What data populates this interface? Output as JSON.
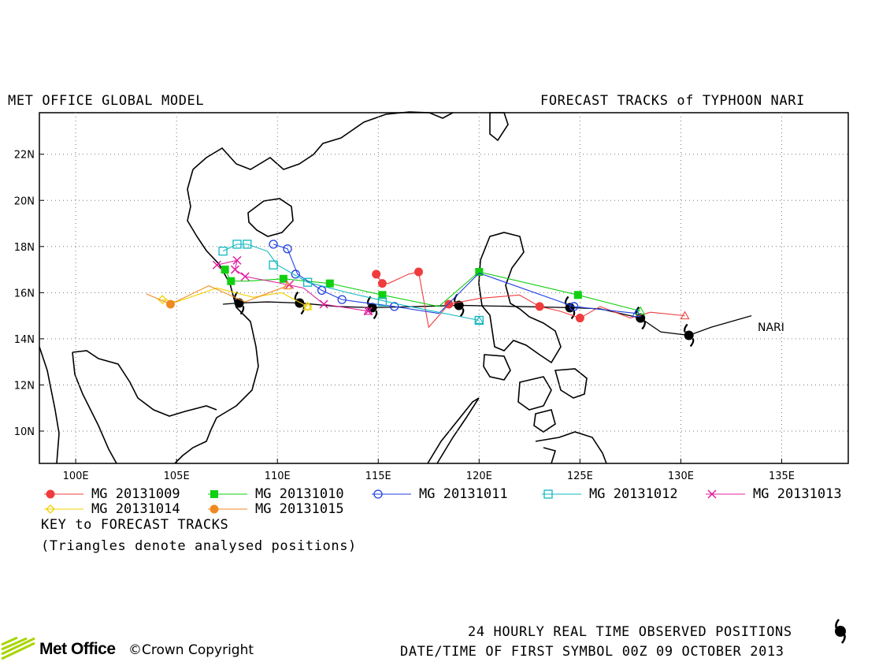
{
  "header": {
    "left_title": "MET OFFICE GLOBAL MODEL",
    "right_title": "FORECAST TRACKS of TYPHOON NARI"
  },
  "map": {
    "lon_ticks": [
      "100E",
      "105E",
      "110E",
      "115E",
      "120E",
      "125E",
      "130E",
      "135E"
    ],
    "lat_ticks": [
      "10N",
      "12N",
      "14N",
      "16N",
      "18N",
      "20N",
      "22N"
    ],
    "storm_label": "NARI",
    "lon_range": [
      98.2,
      138.3
    ],
    "lat_range": [
      8.6,
      23.8
    ]
  },
  "observed_track": [
    [
      133.5,
      15.0
    ],
    [
      131.5,
      14.5
    ],
    [
      130.4,
      14.15
    ],
    [
      129.0,
      14.3
    ],
    [
      128.0,
      14.9
    ],
    [
      126.0,
      15.3
    ],
    [
      124.5,
      15.35
    ],
    [
      122.0,
      15.4
    ],
    [
      119.0,
      15.45
    ],
    [
      117.0,
      15.4
    ],
    [
      114.7,
      15.35
    ],
    [
      113.0,
      15.4
    ],
    [
      111.1,
      15.55
    ],
    [
      109.5,
      15.6
    ],
    [
      108.1,
      15.55
    ],
    [
      107.3,
      15.5
    ]
  ],
  "observed_symbols": [
    [
      130.4,
      14.15
    ],
    [
      128.0,
      14.9
    ],
    [
      124.5,
      15.35
    ],
    [
      119.0,
      15.45
    ],
    [
      114.7,
      15.35
    ],
    [
      111.1,
      15.55
    ],
    [
      108.1,
      15.55
    ]
  ],
  "tracks": [
    {
      "name": "MG 20131009",
      "color": "#f03c3c",
      "marker": "circle-filled",
      "points": [
        [
          130.2,
          15.0
        ],
        [
          128.5,
          15.15
        ],
        [
          127.5,
          14.9
        ],
        [
          126.0,
          15.4
        ],
        [
          125.0,
          14.9
        ],
        [
          124.0,
          15.2
        ],
        [
          123.0,
          15.4
        ],
        [
          122.0,
          15.9
        ],
        [
          120.0,
          15.75
        ],
        [
          118.5,
          15.5
        ],
        [
          117.5,
          14.5
        ],
        [
          117.0,
          16.9
        ],
        [
          116.5,
          16.8
        ],
        [
          115.5,
          16.4
        ],
        [
          115.2,
          16.4
        ],
        [
          114.9,
          16.8
        ]
      ],
      "markers": [
        [
          125.0,
          14.9
        ],
        [
          123.0,
          15.4
        ],
        [
          118.5,
          15.5
        ],
        [
          117.0,
          16.9
        ],
        [
          115.2,
          16.4
        ],
        [
          114.9,
          16.8
        ]
      ]
    },
    {
      "name": "MG 20131010",
      "color": "#10d010",
      "marker": "square-filled",
      "points": [
        [
          128.0,
          15.2
        ],
        [
          124.9,
          15.9
        ],
        [
          120.0,
          16.9
        ],
        [
          118.0,
          15.4
        ],
        [
          115.2,
          15.9
        ],
        [
          112.6,
          16.4
        ],
        [
          110.3,
          16.6
        ],
        [
          108.5,
          16.5
        ],
        [
          107.7,
          16.5
        ],
        [
          107.4,
          17.0
        ]
      ],
      "markers": [
        [
          124.9,
          15.9
        ],
        [
          120.0,
          16.9
        ],
        [
          115.2,
          15.9
        ],
        [
          112.6,
          16.4
        ],
        [
          110.3,
          16.6
        ],
        [
          107.7,
          16.5
        ],
        [
          107.4,
          17.0
        ]
      ]
    },
    {
      "name": "MG 20131011",
      "color": "#2040e0",
      "marker": "circle-open",
      "points": [
        [
          127.8,
          15.1
        ],
        [
          124.7,
          15.4
        ],
        [
          120.0,
          16.85
        ],
        [
          118.0,
          15.1
        ],
        [
          115.8,
          15.4
        ],
        [
          114.0,
          15.6
        ],
        [
          113.2,
          15.7
        ],
        [
          112.2,
          16.1
        ],
        [
          111.0,
          16.8
        ],
        [
          110.5,
          17.9
        ],
        [
          109.8,
          18.1
        ]
      ],
      "markers": [
        [
          124.7,
          15.4
        ],
        [
          115.8,
          15.4
        ],
        [
          113.2,
          15.7
        ],
        [
          112.2,
          16.1
        ],
        [
          110.9,
          16.8
        ],
        [
          110.5,
          17.9
        ],
        [
          109.8,
          18.1
        ]
      ]
    },
    {
      "name": "MG 20131012",
      "color": "#10b8c0",
      "marker": "square-open",
      "points": [
        [
          120.0,
          14.8
        ],
        [
          116.0,
          15.5
        ],
        [
          113.5,
          16.0
        ],
        [
          111.5,
          16.45
        ],
        [
          110.0,
          17.2
        ],
        [
          109.5,
          17.8
        ],
        [
          108.5,
          18.1
        ],
        [
          108.0,
          18.1
        ],
        [
          107.3,
          17.8
        ]
      ],
      "markers": [
        [
          120.0,
          14.8
        ],
        [
          115.2,
          15.6
        ],
        [
          111.5,
          16.45
        ],
        [
          109.8,
          17.2
        ],
        [
          108.5,
          18.1
        ],
        [
          108.0,
          18.1
        ],
        [
          107.3,
          17.8
        ]
      ]
    },
    {
      "name": "MG 20131013",
      "color": "#e020a0",
      "marker": "x",
      "points": [
        [
          114.5,
          15.2
        ],
        [
          112.3,
          15.5
        ],
        [
          111.3,
          16.2
        ],
        [
          110.2,
          16.4
        ],
        [
          108.4,
          16.7
        ],
        [
          107.9,
          17.0
        ],
        [
          108.0,
          17.4
        ],
        [
          107.0,
          17.2
        ]
      ],
      "markers": [
        [
          114.5,
          15.2
        ],
        [
          112.3,
          15.5
        ],
        [
          110.6,
          16.35
        ],
        [
          108.4,
          16.7
        ],
        [
          107.9,
          17.0
        ],
        [
          108.0,
          17.4
        ],
        [
          107.0,
          17.2
        ]
      ]
    },
    {
      "name": "MG 20131014",
      "color": "#f0d000",
      "marker": "diamond",
      "points": [
        [
          111.5,
          15.4
        ],
        [
          110.2,
          16.0
        ],
        [
          108.8,
          15.8
        ],
        [
          107.0,
          16.2
        ],
        [
          105.0,
          15.6
        ],
        [
          104.3,
          15.7
        ]
      ],
      "markers": [
        [
          111.5,
          15.4
        ],
        [
          104.3,
          15.7
        ]
      ]
    },
    {
      "name": "MG 20131015",
      "color": "#f08a20",
      "marker": "circle-filled",
      "points": [
        [
          110.5,
          16.3
        ],
        [
          108.4,
          15.6
        ],
        [
          106.6,
          16.3
        ],
        [
          104.7,
          15.5
        ],
        [
          103.5,
          15.95
        ]
      ],
      "markers": [
        [
          104.7,
          15.5
        ]
      ]
    }
  ],
  "legend": {
    "key_title": "KEY to FORECAST TRACKS",
    "note": "(Triangles denote analysed positions)"
  },
  "footer": {
    "observed_note": "24 HOURLY REAL TIME OBSERVED POSITIONS",
    "datetime": "DATE/TIME OF FIRST SYMBOL 00Z 09 OCTOBER 2013",
    "logo_text": "Met Office",
    "copyright": "©Crown Copyright"
  }
}
